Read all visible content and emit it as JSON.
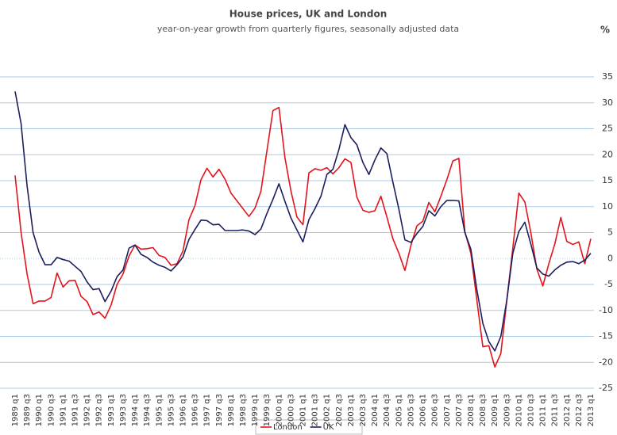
{
  "chart_data": {
    "type": "line",
    "title": "House prices, UK and London",
    "subtitle": "year-on-year growth from quarterly figures, seasonally adjusted data",
    "y_axis_label": "%",
    "categories": [
      "1989 q1",
      null,
      "1989 q3",
      null,
      "1990 q1",
      null,
      "1990 q3",
      null,
      "1991 q1",
      null,
      "1991 q3",
      null,
      "1992 q1",
      null,
      "1992 q3",
      null,
      "1993 q1",
      null,
      "1993 q3",
      null,
      "1994 q1",
      null,
      "1994 q3",
      null,
      "1995 q1",
      null,
      "1995 q3",
      null,
      "1996 q1",
      null,
      "1996 q3",
      null,
      "1997 q1",
      null,
      "1997 q3",
      null,
      "1998 q1",
      null,
      "1998 q3",
      null,
      "1999 q1",
      null,
      "1999 q3",
      null,
      "2000 q1",
      null,
      "2000 q3",
      null,
      "2001 q1",
      null,
      "2001 q3",
      null,
      "2002 q1",
      null,
      "2002 q3",
      null,
      "2003 q1",
      null,
      "2003 q3",
      null,
      "2004 q1",
      null,
      "2004 q3",
      null,
      "2005 q1",
      null,
      "2005 q3",
      null,
      "2006 q1",
      null,
      "2006 q3",
      null,
      "2007 q1",
      null,
      "2007 q3",
      null,
      "2008 q1",
      null,
      "2008 q3",
      null,
      "2009 q1",
      null,
      "2009 q3",
      null,
      "2010 q1",
      null,
      "2010 q3",
      null,
      "2011 q1",
      null,
      "2011 q3",
      null,
      "2012 q1",
      null,
      "2012 q3",
      null,
      "2013 q1"
    ],
    "series": [
      {
        "name": "London",
        "color": "#e3141b",
        "values": [
          16,
          5,
          -3,
          -8.7,
          -8.2,
          -8.2,
          -7.5,
          -2.8,
          -5.5,
          -4.3,
          -4.2,
          -7.3,
          -8.3,
          -10.8,
          -10.3,
          -11.5,
          -9,
          -5,
          -3,
          0.5,
          2.6,
          1.8,
          1.9,
          2.1,
          0.6,
          0.2,
          -1.3,
          -1,
          1.5,
          7.5,
          10.2,
          15.2,
          17.4,
          15.7,
          17.2,
          15.3,
          12.6,
          11.1,
          9.6,
          8.1,
          9.7,
          13,
          20.8,
          28.5,
          29.1,
          19.4,
          13,
          8,
          6.5,
          16.5,
          17.3,
          17,
          17.5,
          16.3,
          17.5,
          19.2,
          18.5,
          11.8,
          9.3,
          8.9,
          9.2,
          12,
          8,
          3.8,
          1,
          -2.3,
          2.5,
          6.3,
          7.2,
          10.8,
          9,
          12,
          15.2,
          18.8,
          19.3,
          5.2,
          1,
          -8,
          -17,
          -16.8,
          -20.9,
          -18.3,
          -8,
          2,
          12.6,
          10.9,
          5,
          -2,
          -5.3,
          -1,
          2.8,
          7.9,
          3.3,
          2.7,
          3.2,
          -1,
          3.8
        ]
      },
      {
        "name": "UK",
        "color": "#1c1f5e",
        "values": [
          32.2,
          26,
          14,
          5,
          1.2,
          -1.2,
          -1.2,
          0.2,
          -0.2,
          -0.5,
          -1.5,
          -2.5,
          -4.5,
          -6,
          -5.8,
          -8.3,
          -6.3,
          -3.5,
          -2.2,
          2,
          2.6,
          0.8,
          0.2,
          -0.7,
          -1.3,
          -1.7,
          -2.4,
          -1.2,
          0.3,
          3.7,
          5.6,
          7.4,
          7.3,
          6.5,
          6.6,
          5.4,
          5.4,
          5.4,
          5.5,
          5.3,
          4.6,
          5.7,
          8.7,
          11.4,
          14.4,
          11,
          7.8,
          5.5,
          3.2,
          7.5,
          9.6,
          12,
          16.2,
          17.2,
          21,
          25.8,
          23.3,
          21.9,
          18.5,
          16.2,
          19,
          21.3,
          20.2,
          14.7,
          9.5,
          3.6,
          3.1,
          4.8,
          6.2,
          9.2,
          8.2,
          10,
          11.2,
          11.2,
          11.1,
          5,
          1.8,
          -6,
          -12.5,
          -16,
          -17.8,
          -15,
          -8,
          1,
          5.2,
          7,
          2.8,
          -1.8,
          -3,
          -3.4,
          -2.2,
          -1.3,
          -0.7,
          -0.6,
          -1,
          -0.3,
          1
        ]
      }
    ],
    "ylim": [
      -25,
      35
    ],
    "yticks": [
      -25,
      -20,
      -15,
      -10,
      -5,
      0,
      5,
      10,
      15,
      20,
      25,
      30,
      35
    ],
    "grid": true,
    "legend": "bottom"
  }
}
